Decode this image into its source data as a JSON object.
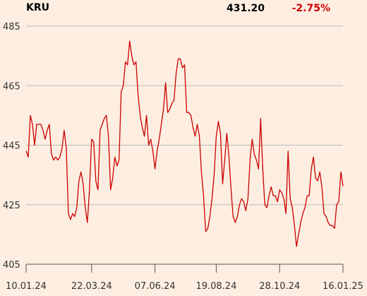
{
  "chart_data": {
    "type": "line",
    "title": "KRU",
    "last_price": "431.20",
    "change": "-2.75%",
    "categories": [
      "10.01.24",
      null,
      null,
      null,
      null,
      null,
      null,
      null,
      null,
      null,
      null,
      null,
      null,
      null,
      null,
      null,
      null,
      null,
      null,
      null,
      null,
      null,
      null,
      null,
      null,
      null,
      null,
      null,
      null,
      null,
      null,
      "22.03.24",
      null,
      null,
      null,
      null,
      null,
      null,
      null,
      null,
      null,
      null,
      null,
      null,
      null,
      null,
      null,
      null,
      null,
      null,
      null,
      null,
      null,
      null,
      null,
      null,
      null,
      null,
      null,
      null,
      null,
      "07.06.24",
      null,
      null,
      null,
      null,
      null,
      null,
      null,
      null,
      null,
      null,
      null,
      null,
      null,
      null,
      null,
      null,
      null,
      null,
      null,
      null,
      null,
      null,
      null,
      null,
      null,
      null,
      null,
      null,
      "19.08.24",
      null,
      null,
      null,
      null,
      null,
      null,
      null,
      null,
      null,
      null,
      null,
      null,
      null,
      null,
      null,
      null,
      null,
      null,
      null,
      null,
      null,
      null,
      null,
      null,
      null,
      null,
      null,
      null,
      null,
      "28.10.24",
      null,
      null,
      null,
      null,
      null,
      null,
      null,
      null,
      null,
      null,
      null,
      null,
      null,
      null,
      null,
      null,
      null,
      null,
      null,
      null,
      null,
      null,
      null,
      null,
      null,
      null,
      null,
      null,
      null,
      "16.01.25"
    ],
    "series": [
      {
        "color": "#cc0000",
        "values": [
          443,
          441,
          455,
          452,
          445,
          452,
          452,
          452,
          450,
          447,
          450,
          452,
          442,
          440,
          441,
          440,
          441,
          444,
          450,
          444,
          422,
          420,
          422,
          421,
          424,
          433,
          436,
          432,
          424,
          419,
          430,
          447,
          446,
          433,
          430,
          450,
          452,
          454,
          455,
          448,
          430,
          434,
          441,
          438,
          440,
          463,
          465,
          473,
          472,
          480,
          475,
          472,
          473,
          462,
          455,
          451,
          448,
          455,
          445,
          447,
          443,
          437,
          443,
          447,
          452,
          457,
          466,
          456,
          457,
          459,
          460,
          469,
          474,
          474,
          471,
          472,
          456,
          456,
          455,
          451,
          448,
          452,
          448,
          436,
          428,
          416,
          417,
          421,
          427,
          435,
          448,
          453,
          449,
          432,
          440,
          449,
          441,
          430,
          421,
          419,
          421,
          425,
          427,
          426,
          423,
          427,
          440,
          447,
          442,
          440,
          437,
          454,
          437,
          425,
          424,
          428,
          431,
          428,
          428,
          426,
          430,
          429,
          427,
          422,
          443,
          427,
          424,
          418,
          411,
          415,
          419,
          422,
          424,
          428,
          428,
          437,
          441,
          434,
          433,
          436,
          431,
          422,
          421,
          419,
          418,
          418,
          417,
          425,
          426,
          436,
          431.2
        ]
      }
    ],
    "ylim": [
      405,
      485
    ],
    "yticks": [
      405,
      425,
      445,
      465,
      485
    ],
    "grid": true
  }
}
